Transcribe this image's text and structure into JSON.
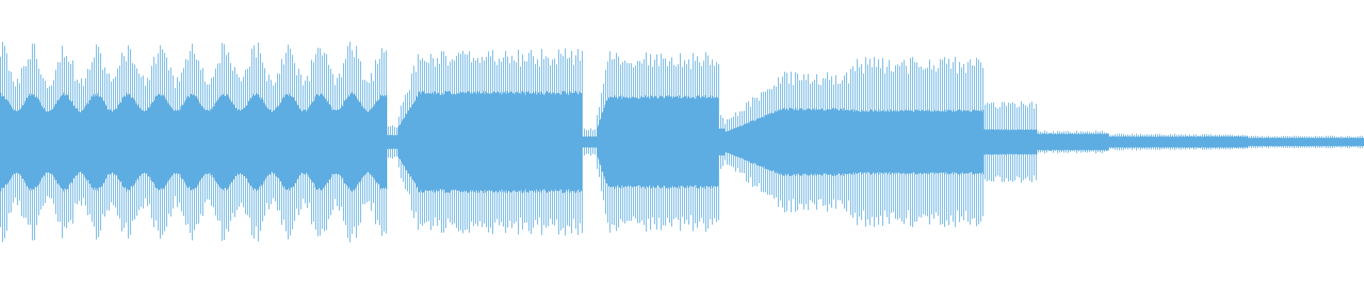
{
  "chart_data": {
    "type": "waveform",
    "color": "#5dade2",
    "background": "#ffffff",
    "grid": false,
    "ylim": [
      -1,
      1
    ],
    "segments": [
      {
        "duration": 545,
        "core": 0.35,
        "peak": 0.72,
        "lobe_period": 45,
        "lobe_depth": 0.35
      },
      {
        "duration": 15,
        "core": 0.05,
        "peak": 0.12
      },
      {
        "duration": 260,
        "core": 0.36,
        "peak": 0.66,
        "ramp_in": 30
      },
      {
        "duration": 20,
        "core": 0.04,
        "peak": 0.1
      },
      {
        "duration": 172,
        "core": 0.33,
        "peak": 0.64,
        "ramp_in": 15
      },
      {
        "duration": 8,
        "core": 0.1,
        "peak": 0.2
      },
      {
        "duration": 175,
        "core": 0.24,
        "peak": 0.5,
        "ramp_in": 80
      },
      {
        "duration": 190,
        "core": 0.23,
        "peak": 0.6
      },
      {
        "duration": 75,
        "core": 0.09,
        "peak": 0.29
      },
      {
        "duration": 100,
        "core": 0.06,
        "peak": 0.08
      },
      {
        "duration": 105,
        "core": 0.04,
        "peak": 0.06
      },
      {
        "duration": 92,
        "core": 0.04,
        "peak": 0.055
      },
      {
        "duration": 163,
        "core": 0.03,
        "peak": 0.045
      }
    ]
  }
}
